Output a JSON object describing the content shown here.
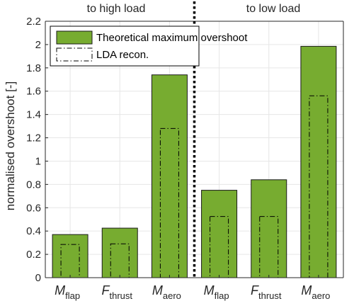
{
  "chart_data": {
    "type": "bar",
    "ylabel": "normalised overshoot [-]",
    "ylim": [
      0,
      2.2
    ],
    "yticks": [
      "0",
      "0.2",
      "0.4",
      "0.6",
      "0.8",
      "1",
      "1.2",
      "1.4",
      "1.6",
      "1.8",
      "2",
      "2.2"
    ],
    "grid": true,
    "categories": [
      {
        "main": "M",
        "sub": "flap"
      },
      {
        "main": "F",
        "sub": "thrust"
      },
      {
        "main": "M",
        "sub": "aero"
      },
      {
        "main": "M",
        "sub": "flap"
      },
      {
        "main": "F",
        "sub": "thrust"
      },
      {
        "main": "M",
        "sub": "aero"
      }
    ],
    "group_labels": [
      "to high load",
      "to low load"
    ],
    "series": [
      {
        "name": "Theoretical maximum overshoot",
        "values": [
          0.37,
          0.425,
          1.74,
          0.75,
          0.84,
          1.985
        ],
        "color": "#77AC30"
      },
      {
        "name": "LDA recon.",
        "values": [
          0.285,
          0.29,
          1.28,
          0.525,
          0.525,
          1.56
        ],
        "color": "#000000"
      }
    ],
    "legend_location": "top-left"
  }
}
